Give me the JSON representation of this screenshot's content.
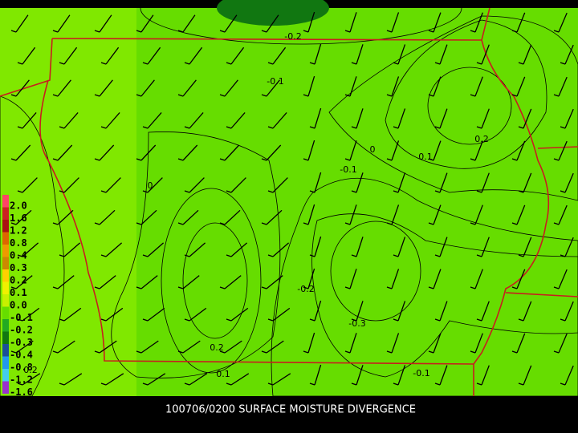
{
  "map": {
    "caption": "100706/0200 SURFACE MOISTURE DIVERGENCE",
    "legend": {
      "labels": [
        "2.0",
        "1.6",
        "1.2",
        "0.8",
        "0.4",
        "0.3",
        "0.2",
        "0.1",
        "0.0",
        "-0.1",
        "-0.2",
        "-0.3",
        "-0.4",
        "-0.8",
        "-1.2",
        "-1.6"
      ],
      "colors": [
        "#ff4466",
        "#cc2222",
        "#aa1111",
        "#dd6600",
        "#ee9900",
        "#cc8800",
        "#ffd000",
        "#f0f000",
        "#c8f000",
        "#66dd00",
        "#22aa22",
        "#117711",
        "#1a4f99",
        "#2299ee",
        "#44ccee",
        "#9933cc"
      ]
    },
    "contour_labels": [
      "-0.2",
      "-0.1",
      "0",
      "0.1",
      "0.2",
      "-0.1",
      "0",
      "-0.2",
      "-0.3",
      "0.2",
      "0.1",
      "-0.1",
      "0.2"
    ]
  }
}
